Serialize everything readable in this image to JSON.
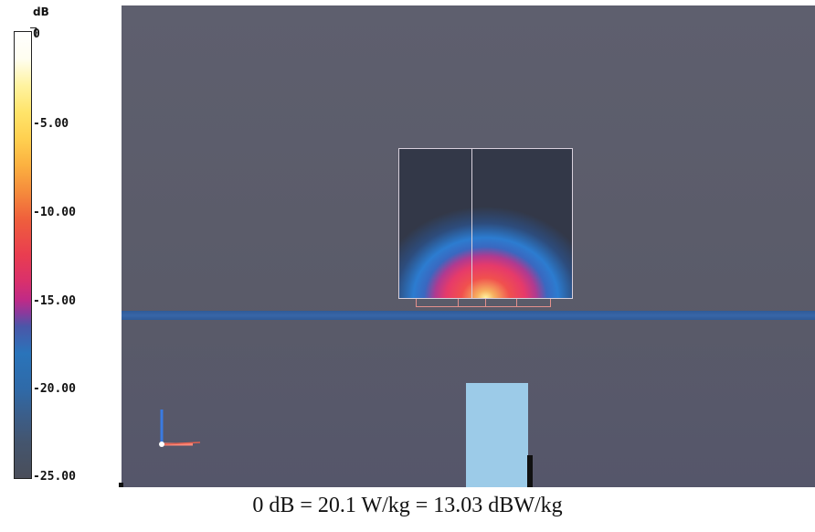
{
  "legend": {
    "unit": "dB",
    "ticks": [
      "0",
      "-5.00",
      "-10.00",
      "-15.00",
      "-20.00",
      "-25.00"
    ]
  },
  "caption": "0 dB = 20.1 W/kg = 13.03 dBW/kg",
  "colors": {
    "background": "#5b5c6a",
    "horizontal_line": "#3466a6",
    "device": "#9ccbe8",
    "outline": "#d8d0dc",
    "antenna": "#e4908c"
  },
  "icons": [
    "axis-triad-icon"
  ]
}
